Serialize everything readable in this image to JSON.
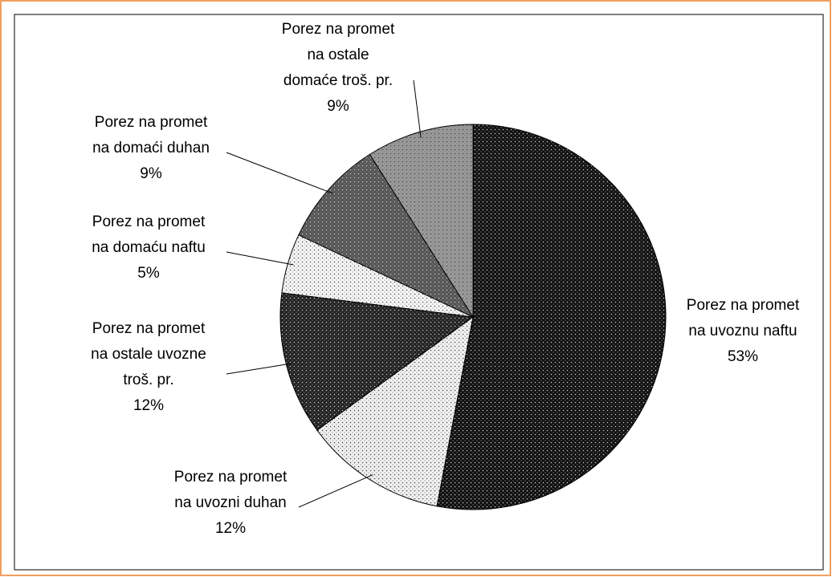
{
  "chart_data": {
    "type": "pie",
    "categories": [
      [
        "Porez na promet",
        "na uvoznu naftu"
      ],
      [
        "Porez na promet",
        "na uvozni duhan"
      ],
      [
        "Porez na promet",
        "na ostale uvozne",
        "troš. pr."
      ],
      [
        "Porez na promet",
        "na domaću naftu"
      ],
      [
        "Porez na promet",
        "na domaći duhan"
      ],
      [
        "Porez na promet",
        "na ostale",
        "domaće troš. pr."
      ]
    ],
    "values": [
      53,
      12,
      12,
      5,
      9,
      9
    ],
    "value_labels": [
      "53%",
      "12%",
      "12%",
      "5%",
      "9%",
      "9%"
    ],
    "colors": [
      "#111111",
      "#f2f2f2",
      "#222222",
      "#f7f7f7",
      "#555555",
      "#9a9a9a"
    ]
  }
}
